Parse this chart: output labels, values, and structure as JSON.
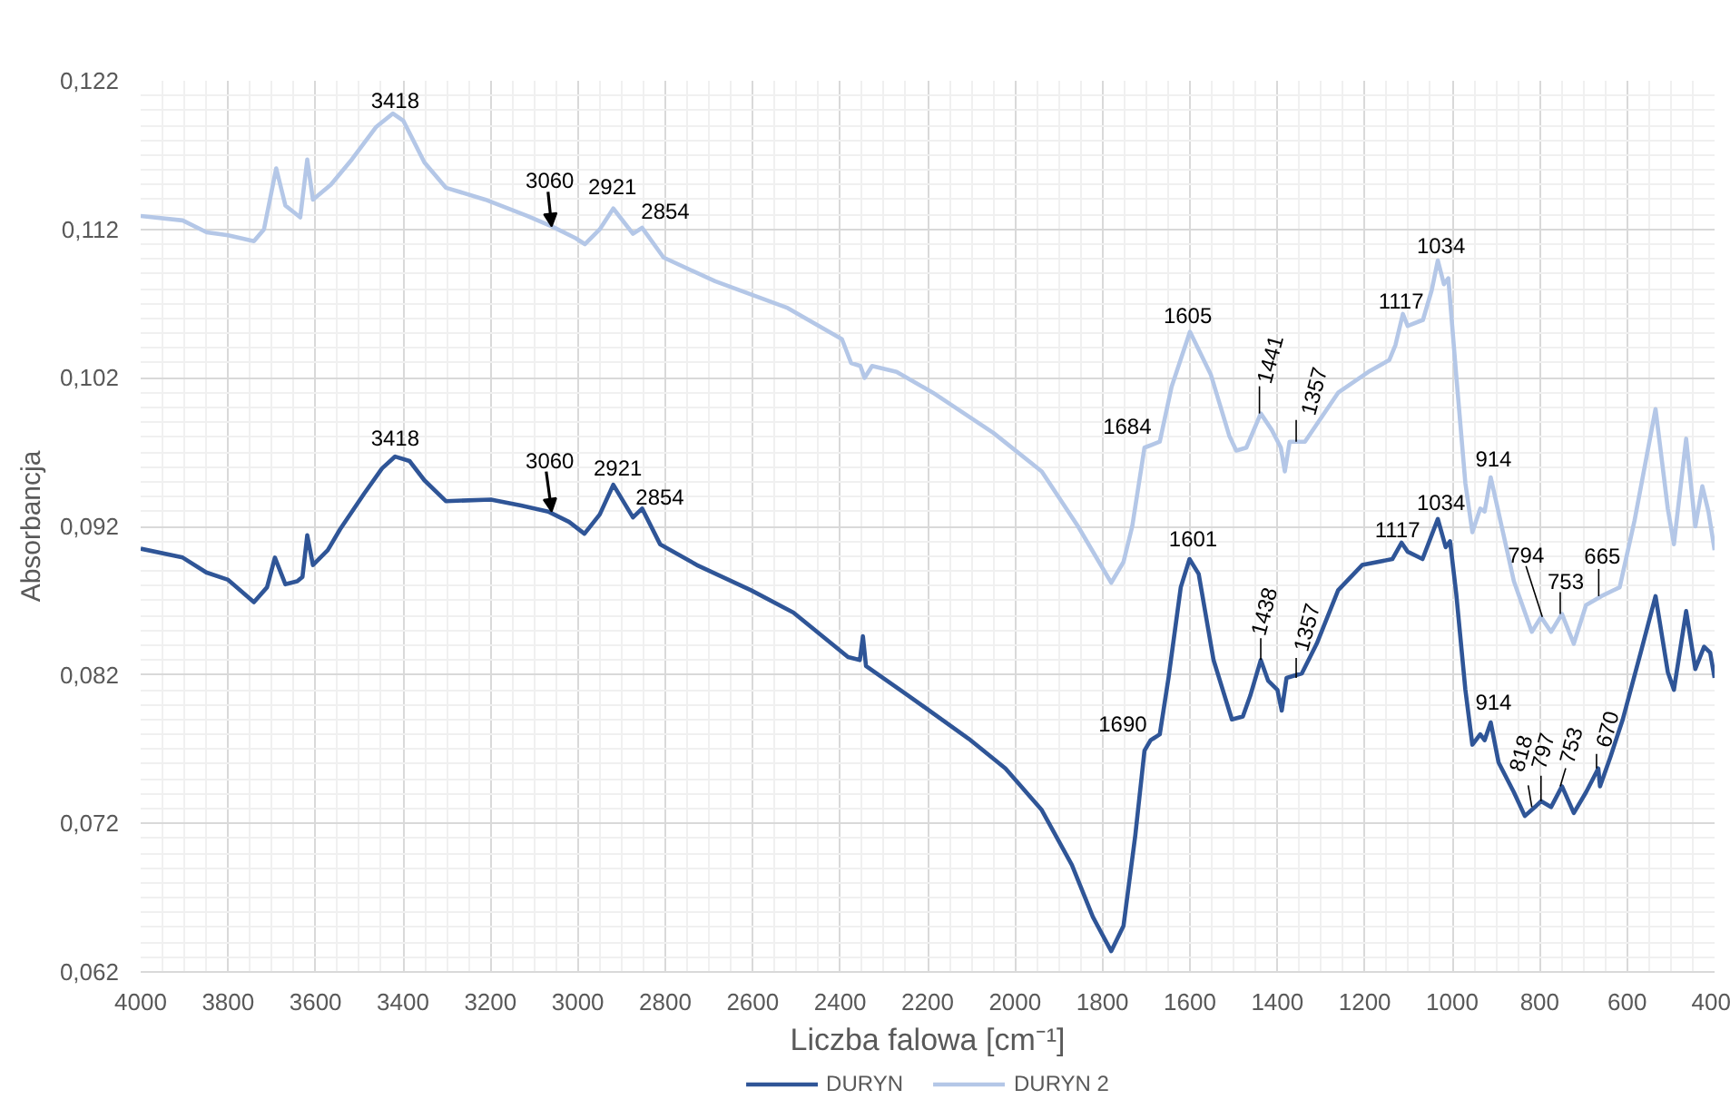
{
  "chart_data": {
    "type": "line",
    "xlabel": "Liczba falowa [cm⁻¹]",
    "ylabel": "Absorbancja",
    "xlim": [
      4000,
      400
    ],
    "ylim": [
      0.062,
      0.122
    ],
    "xticks": [
      4000,
      3800,
      3600,
      3400,
      3200,
      3000,
      2800,
      2600,
      2400,
      2200,
      2000,
      1800,
      1600,
      1400,
      1200,
      1000,
      800,
      600,
      400
    ],
    "yticks": [
      {
        "value": 0.062,
        "label": "0,062"
      },
      {
        "value": 0.072,
        "label": "0,072"
      },
      {
        "value": 0.082,
        "label": "0,082"
      },
      {
        "value": 0.092,
        "label": "0,092"
      },
      {
        "value": 0.102,
        "label": "0,102"
      },
      {
        "value": 0.112,
        "label": "0,112"
      },
      {
        "value": 0.122,
        "label": "0,122"
      }
    ],
    "grid": true,
    "legend": "bottom",
    "series": [
      {
        "name": "DURYN",
        "color": "#2f5597",
        "x": [
          4000,
          3904,
          3850,
          3800,
          3741,
          3711,
          3693,
          3669,
          3642,
          3630,
          3619,
          3606,
          3572,
          3544,
          3489,
          3448,
          3418,
          3385,
          3351,
          3302,
          3199,
          3130,
          3068,
          3020,
          2985,
          2950,
          2919,
          2874,
          2853,
          2812,
          2728,
          2604,
          2507,
          2382,
          2355,
          2348,
          2341,
          2244,
          2106,
          2022,
          1939,
          1870,
          1822,
          1780,
          1752,
          1725,
          1704,
          1690,
          1669,
          1649,
          1621,
          1601,
          1580,
          1546,
          1504,
          1479,
          1462,
          1438,
          1421,
          1400,
          1390,
          1379,
          1344,
          1310,
          1261,
          1206,
          1137,
          1116,
          1102,
          1068,
          1033,
          1015,
          1005,
          991,
          970,
          954,
          936,
          926,
          912,
          894,
          859,
          834,
          811,
          797,
          774,
          749,
          722,
          694,
          666,
          662,
          638,
          610,
          569,
          535,
          507,
          493,
          465,
          444,
          424,
          410,
          400
        ],
        "values": [
          0.0905,
          0.0899,
          0.0889,
          0.0884,
          0.0869,
          0.0879,
          0.0899,
          0.0881,
          0.0883,
          0.0886,
          0.0914,
          0.0894,
          0.0904,
          0.0918,
          0.0942,
          0.0959,
          0.0967,
          0.0964,
          0.0951,
          0.0937,
          0.0938,
          0.0934,
          0.093,
          0.0923,
          0.0915,
          0.0928,
          0.0948,
          0.0926,
          0.0932,
          0.0908,
          0.0894,
          0.0877,
          0.0862,
          0.0832,
          0.083,
          0.0846,
          0.0826,
          0.0806,
          0.0777,
          0.0757,
          0.0729,
          0.0692,
          0.0657,
          0.0634,
          0.0651,
          0.0712,
          0.0769,
          0.0776,
          0.078,
          0.0818,
          0.0879,
          0.0898,
          0.0888,
          0.083,
          0.079,
          0.0792,
          0.0806,
          0.083,
          0.0816,
          0.081,
          0.0796,
          0.0818,
          0.0821,
          0.0841,
          0.0877,
          0.0894,
          0.0898,
          0.0909,
          0.0903,
          0.0898,
          0.0925,
          0.0906,
          0.091,
          0.0875,
          0.081,
          0.0773,
          0.078,
          0.0776,
          0.0788,
          0.0761,
          0.0741,
          0.0725,
          0.0731,
          0.0735,
          0.0731,
          0.0745,
          0.0727,
          0.0741,
          0.0757,
          0.0745,
          0.0765,
          0.079,
          0.0835,
          0.0873,
          0.0822,
          0.081,
          0.0863,
          0.0824,
          0.0839,
          0.0835,
          0.0818
        ]
      },
      {
        "name": "DURYN 2",
        "color": "#b4c7e7",
        "x": [
          4000,
          3904,
          3849,
          3800,
          3741,
          3718,
          3690,
          3669,
          3635,
          3619,
          3606,
          3565,
          3517,
          3461,
          3423,
          3399,
          3351,
          3302,
          3212,
          3116,
          3060,
          3005,
          2984,
          2950,
          2919,
          2874,
          2853,
          2804,
          2686,
          2520,
          2396,
          2375,
          2354,
          2344,
          2327,
          2271,
          2188,
          2050,
          1939,
          1856,
          1808,
          1780,
          1752,
          1732,
          1704,
          1669,
          1642,
          1600,
          1552,
          1510,
          1494,
          1471,
          1438,
          1413,
          1392,
          1383,
          1372,
          1337,
          1261,
          1192,
          1144,
          1130,
          1113,
          1102,
          1067,
          1047,
          1033,
          1019,
          1009,
          991,
          970,
          954,
          936,
          926,
          912,
          887,
          859,
          818,
          797,
          774,
          749,
          722,
          694,
          659,
          617,
          583,
          535,
          507,
          493,
          465,
          444,
          428,
          414,
          400
        ],
        "values": [
          0.1129,
          0.1126,
          0.1118,
          0.1116,
          0.1112,
          0.112,
          0.1161,
          0.1136,
          0.1128,
          0.1167,
          0.114,
          0.115,
          0.1167,
          0.1189,
          0.1198,
          0.1193,
          0.1165,
          0.1148,
          0.114,
          0.1129,
          0.1122,
          0.1114,
          0.111,
          0.112,
          0.1134,
          0.1117,
          0.1121,
          0.1101,
          0.1085,
          0.1067,
          0.1046,
          0.103,
          0.1028,
          0.102,
          0.1028,
          0.1024,
          0.101,
          0.0983,
          0.0957,
          0.092,
          0.0896,
          0.0882,
          0.0896,
          0.092,
          0.0973,
          0.0977,
          0.1014,
          0.1051,
          0.1022,
          0.0981,
          0.0971,
          0.0973,
          0.0996,
          0.0985,
          0.0973,
          0.0957,
          0.0977,
          0.0977,
          0.101,
          0.1024,
          0.1032,
          0.1042,
          0.1063,
          0.1055,
          0.1059,
          0.1079,
          0.1099,
          0.1083,
          0.1087,
          0.1022,
          0.0949,
          0.0916,
          0.0932,
          0.093,
          0.0953,
          0.092,
          0.0883,
          0.0849,
          0.0859,
          0.0849,
          0.0861,
          0.0841,
          0.0867,
          0.0873,
          0.0879,
          0.0924,
          0.0999,
          0.0932,
          0.0908,
          0.0979,
          0.092,
          0.0947,
          0.093,
          0.0904
        ]
      }
    ],
    "annotations": [
      {
        "text": "3418",
        "x": 3418,
        "y": 0.1198
      },
      {
        "text": "3060",
        "x": 3060,
        "y": 0.1122
      },
      {
        "text": "2921",
        "x": 2921,
        "y": 0.1134
      },
      {
        "text": "2854",
        "x": 2854,
        "y": 0.1121
      },
      {
        "text": "1684",
        "x": 1684,
        "y": 0.0975
      },
      {
        "text": "1605",
        "x": 1605,
        "y": 0.1051
      },
      {
        "text": "1441",
        "x": 1441,
        "y": 0.0996
      },
      {
        "text": "1357",
        "x": 1357,
        "y": 0.0977
      },
      {
        "text": "1117",
        "x": 1117,
        "y": 0.1063
      },
      {
        "text": "1034",
        "x": 1034,
        "y": 0.1099
      },
      {
        "text": "914",
        "x": 914,
        "y": 0.0953
      },
      {
        "text": "794",
        "x": 794,
        "y": 0.0859
      },
      {
        "text": "753",
        "x": 753,
        "y": 0.0861
      },
      {
        "text": "665",
        "x": 665,
        "y": 0.0873
      },
      {
        "text": "3418",
        "x": 3418,
        "y": 0.0967
      },
      {
        "text": "3060",
        "x": 3060,
        "y": 0.093
      },
      {
        "text": "2921",
        "x": 2921,
        "y": 0.0948
      },
      {
        "text": "2854",
        "x": 2854,
        "y": 0.0932
      },
      {
        "text": "1690",
        "x": 1690,
        "y": 0.0776
      },
      {
        "text": "1601",
        "x": 1601,
        "y": 0.0898
      },
      {
        "text": "1438",
        "x": 1438,
        "y": 0.083
      },
      {
        "text": "1357",
        "x": 1357,
        "y": 0.0818
      },
      {
        "text": "1117",
        "x": 1117,
        "y": 0.0909
      },
      {
        "text": "1034",
        "x": 1034,
        "y": 0.0925
      },
      {
        "text": "914",
        "x": 914,
        "y": 0.0788
      },
      {
        "text": "818",
        "x": 818,
        "y": 0.0731
      },
      {
        "text": "797",
        "x": 797,
        "y": 0.0735
      },
      {
        "text": "753",
        "x": 753,
        "y": 0.0745
      },
      {
        "text": "670",
        "x": 670,
        "y": 0.0757
      }
    ]
  }
}
